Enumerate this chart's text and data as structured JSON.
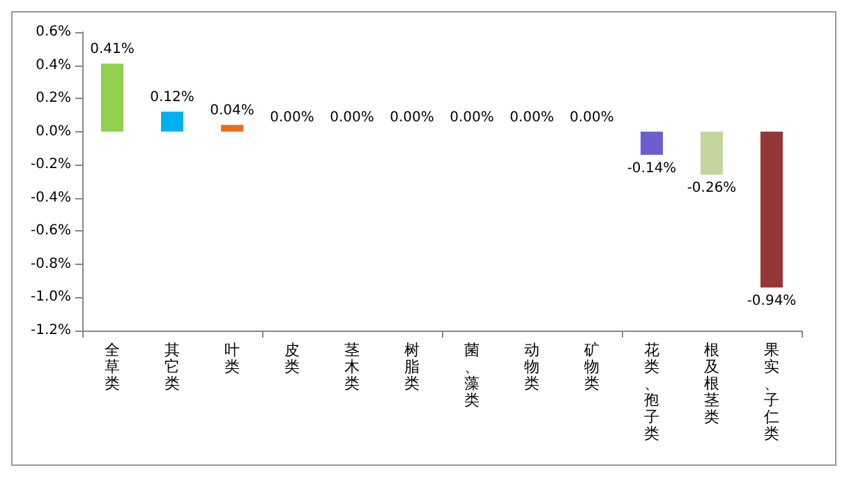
{
  "chart_data": {
    "type": "bar",
    "categories": [
      "全草类",
      "其它类",
      "叶类",
      "皮类",
      "茎木类",
      "树脂类",
      "菌、藻类",
      "动物类",
      "矿物类",
      "花类、孢子类",
      "根及根茎类",
      "果实、子仁类"
    ],
    "values": [
      0.41,
      0.12,
      0.04,
      0,
      0,
      0,
      0,
      0,
      0,
      -0.14,
      -0.26,
      -0.94
    ],
    "value_labels": [
      "0.41%",
      "0.12%",
      "0.04%",
      "0.00%",
      "0.00%",
      "0.00%",
      "0.00%",
      "0.00%",
      "0.00%",
      "-0.14%",
      "-0.26%",
      "-0.94%"
    ],
    "colors": [
      "#92d050",
      "#00b0f0",
      "#f26a1b",
      null,
      null,
      null,
      null,
      null,
      null,
      "#6b5fd0",
      "#c3d69b",
      "#953735"
    ],
    "ylim": [
      -1.2,
      0.6
    ],
    "yticks": [
      {
        "value": -1.2,
        "label": "-1.2%"
      },
      {
        "value": -1.0,
        "label": "-1.0%"
      },
      {
        "value": -0.8,
        "label": "-0.8%"
      },
      {
        "value": -0.6,
        "label": "-0.6%"
      },
      {
        "value": -0.4,
        "label": "-0.4%"
      },
      {
        "value": -0.2,
        "label": "-0.2%"
      },
      {
        "value": 0,
        "label": "0.0%"
      },
      {
        "value": 0.2,
        "label": "0.2%"
      },
      {
        "value": 0.4,
        "label": "0.4%"
      },
      {
        "value": 0.6,
        "label": "0.6%"
      }
    ],
    "grid": false
  }
}
